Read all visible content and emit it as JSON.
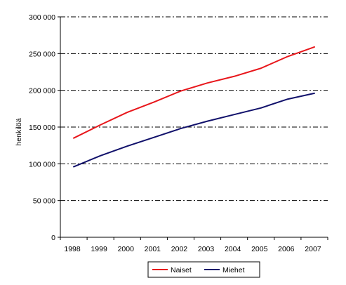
{
  "chart_data": {
    "type": "line",
    "title": "",
    "xlabel": "",
    "ylabel": "henkilöä",
    "x": [
      "1998",
      "1999",
      "2000",
      "2001",
      "2002",
      "2003",
      "2004",
      "2005",
      "2006",
      "2007"
    ],
    "ylim": [
      0,
      300000
    ],
    "y_ticks": [
      0,
      50000,
      100000,
      150000,
      200000,
      250000,
      300000
    ],
    "y_tick_labels": [
      "0",
      "50 000",
      "100 000",
      "150 000",
      "200 000",
      "250 000",
      "300 000"
    ],
    "grid": "horizontal dash-dot",
    "legend_position": "bottom-center",
    "series": [
      {
        "name": "Naiset",
        "color": "#e8161b",
        "values": [
          135000,
          153000,
          170000,
          184000,
          199000,
          210000,
          219000,
          230000,
          246000,
          259000
        ]
      },
      {
        "name": "Miehet",
        "color": "#11116b",
        "values": [
          96000,
          111000,
          124000,
          136000,
          148000,
          158000,
          167000,
          176000,
          188000,
          196000
        ]
      }
    ]
  }
}
